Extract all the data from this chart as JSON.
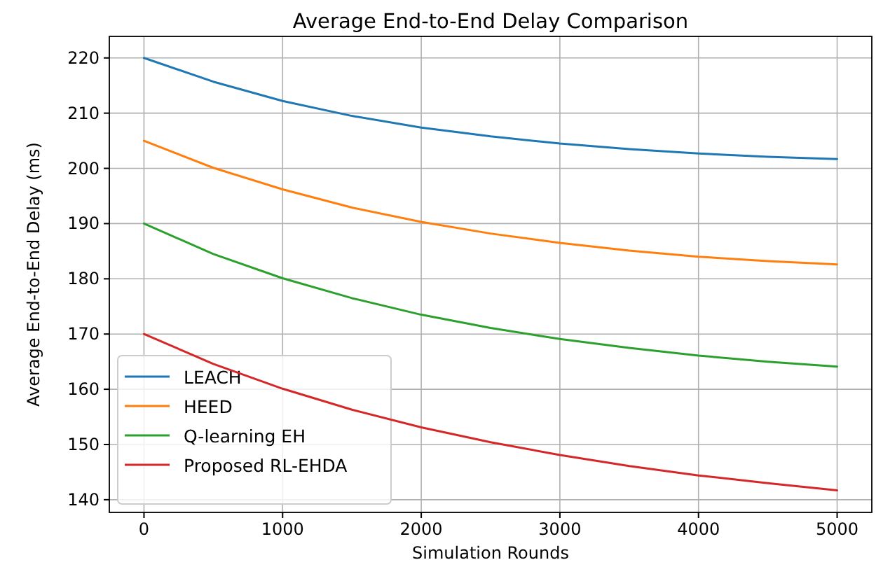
{
  "chart_data": {
    "type": "line",
    "title": "Average End-to-End Delay Comparison",
    "xlabel": "Simulation Rounds",
    "ylabel": "Average End-to-End Delay (ms)",
    "x": [
      0,
      500,
      1000,
      1500,
      2000,
      2500,
      3000,
      3500,
      4000,
      4500,
      5000
    ],
    "series": [
      {
        "name": "LEACH",
        "color": "#1f77b4",
        "values": [
          220,
          215.7,
          212.2,
          209.5,
          207.4,
          205.8,
          204.5,
          203.5,
          202.7,
          202.1,
          201.7
        ]
      },
      {
        "name": "HEED",
        "color": "#ff7f0e",
        "values": [
          205,
          200.1,
          196.2,
          192.9,
          190.3,
          188.2,
          186.5,
          185.1,
          184.0,
          183.2,
          182.6
        ]
      },
      {
        "name": "Q-learning EH",
        "color": "#2ca02c",
        "values": [
          190,
          184.5,
          180.1,
          176.5,
          173.5,
          171.1,
          169.1,
          167.5,
          166.1,
          165.0,
          164.1
        ]
      },
      {
        "name": "Proposed RL-EHDA",
        "color": "#d62728",
        "values": [
          170,
          164.6,
          160.1,
          156.3,
          153.1,
          150.4,
          148.1,
          146.1,
          144.4,
          143.0,
          141.7
        ]
      }
    ],
    "xlim": [
      -250,
      5250
    ],
    "xticks": [
      0,
      1000,
      2000,
      3000,
      4000,
      5000
    ],
    "ylim": [
      137.7,
      223.9
    ],
    "yticks": [
      140,
      150,
      160,
      170,
      180,
      190,
      200,
      210,
      220
    ],
    "grid": true,
    "legend": "bottom left",
    "line_style": "solid"
  }
}
